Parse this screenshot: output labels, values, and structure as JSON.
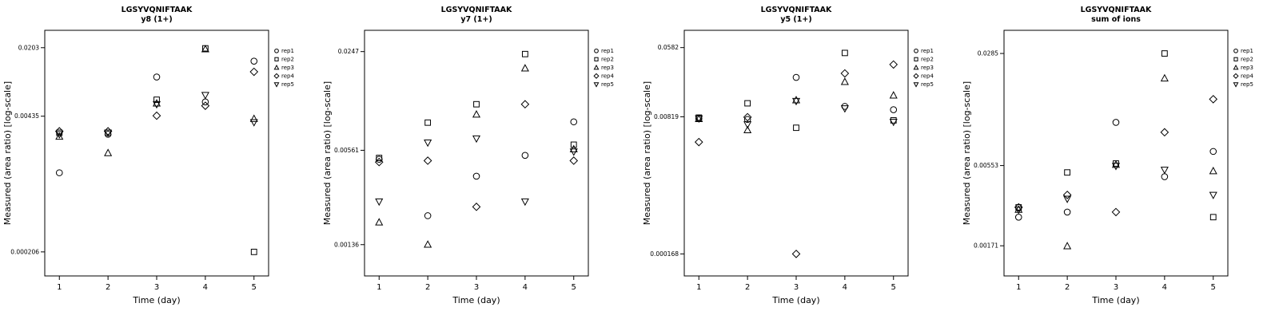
{
  "page": {
    "background": "#ffffff",
    "foreground": "#000000"
  },
  "legend": {
    "position": "right",
    "items": [
      {
        "label": "rep1",
        "marker": "circle"
      },
      {
        "label": "rep2",
        "marker": "square"
      },
      {
        "label": "rep3",
        "marker": "triangle-up"
      },
      {
        "label": "rep4",
        "marker": "diamond"
      },
      {
        "label": "rep5",
        "marker": "triangle-down"
      }
    ]
  },
  "chart_data": [
    {
      "type": "scatter",
      "title": "LGSYVQNIFTAAK",
      "subtitle": "y8 (1+)",
      "xlabel": "Time (day)",
      "ylabel": "Measured (area ratio) [log-scale]",
      "yscale": "log",
      "grid": false,
      "x": [
        1,
        2,
        3,
        4,
        5
      ],
      "xlim": [
        0.7,
        5.3
      ],
      "xticks": [
        1,
        2,
        3,
        4,
        5
      ],
      "ylim": [
        0.00012,
        0.03
      ],
      "yticks": [
        0.000206,
        0.00435,
        0.0203
      ],
      "ytick_labels": [
        "0.000206",
        "0.00435",
        "0.0203"
      ],
      "series": [
        {
          "name": "rep1",
          "marker": "circle",
          "values": [
            0.00122,
            0.0029,
            0.0105,
            0.006,
            0.015
          ]
        },
        {
          "name": "rep2",
          "marker": "square",
          "values": [
            0.003,
            0.003,
            0.0063,
            0.02,
            0.000206
          ]
        },
        {
          "name": "rep3",
          "marker": "triangle-up",
          "values": [
            0.00275,
            0.0019,
            0.0058,
            0.0196,
            0.0041
          ]
        },
        {
          "name": "rep4",
          "marker": "diamond",
          "values": [
            0.0031,
            0.0031,
            0.0044,
            0.0055,
            0.0118
          ]
        },
        {
          "name": "rep5",
          "marker": "triangle-down",
          "values": [
            0.0029,
            0.003,
            0.0057,
            0.007,
            0.0038
          ]
        }
      ]
    },
    {
      "type": "scatter",
      "title": "LGSYVQNIFTAAK",
      "subtitle": "y7 (1+)",
      "xlabel": "Time (day)",
      "ylabel": "Measured (area ratio) [log-scale]",
      "yscale": "log",
      "grid": false,
      "x": [
        1,
        2,
        3,
        4,
        5
      ],
      "xlim": [
        0.7,
        5.3
      ],
      "xticks": [
        1,
        2,
        3,
        4,
        5
      ],
      "ylim": [
        0.00085,
        0.034
      ],
      "yticks": [
        0.00136,
        0.00561,
        0.0247
      ],
      "ytick_labels": [
        "0.00136",
        "0.00561",
        "0.0247"
      ],
      "series": [
        {
          "name": "rep1",
          "marker": "circle",
          "values": [
            0.0049,
            0.0021,
            0.0038,
            0.0052,
            0.0086
          ]
        },
        {
          "name": "rep2",
          "marker": "square",
          "values": [
            0.005,
            0.0085,
            0.0112,
            0.0238,
            0.0061
          ]
        },
        {
          "name": "rep3",
          "marker": "triangle-up",
          "values": [
            0.0019,
            0.00136,
            0.0096,
            0.0192,
            0.0057
          ]
        },
        {
          "name": "rep4",
          "marker": "diamond",
          "values": [
            0.0047,
            0.0048,
            0.0024,
            0.0112,
            0.0048
          ]
        },
        {
          "name": "rep5",
          "marker": "triangle-down",
          "values": [
            0.0026,
            0.0063,
            0.0067,
            0.0026,
            0.0055
          ]
        }
      ]
    },
    {
      "type": "scatter",
      "title": "LGSYVQNIFTAAK",
      "subtitle": "y5 (1+)",
      "xlabel": "Time (day)",
      "ylabel": "Measured (area ratio) [log-scale]",
      "yscale": "log",
      "grid": false,
      "x": [
        1,
        2,
        3,
        4,
        5
      ],
      "xlim": [
        0.7,
        5.3
      ],
      "xticks": [
        1,
        2,
        3,
        4,
        5
      ],
      "ylim": [
        9e-05,
        0.095
      ],
      "yticks": [
        0.000168,
        0.00819,
        0.0582
      ],
      "ytick_labels": [
        "0.000168",
        "0.00819",
        "0.0582"
      ],
      "series": [
        {
          "name": "rep1",
          "marker": "circle",
          "values": [
            0.0078,
            0.0076,
            0.025,
            0.011,
            0.01
          ]
        },
        {
          "name": "rep2",
          "marker": "square",
          "values": [
            0.008,
            0.012,
            0.006,
            0.05,
            0.0074
          ]
        },
        {
          "name": "rep3",
          "marker": "triangle-up",
          "values": [
            0.0077,
            0.0056,
            0.0131,
            0.022,
            0.015
          ]
        },
        {
          "name": "rep4",
          "marker": "diamond",
          "values": [
            0.004,
            0.0081,
            0.000168,
            0.028,
            0.036
          ]
        },
        {
          "name": "rep5",
          "marker": "triangle-down",
          "values": [
            0.0078,
            0.0066,
            0.0128,
            0.0104,
            0.0071
          ]
        }
      ]
    },
    {
      "type": "scatter",
      "title": "LGSYVQNIFTAAK",
      "subtitle": "sum of ions",
      "xlabel": "Time (day)",
      "ylabel": "Measured (area ratio) [log-scale]",
      "yscale": "log",
      "grid": false,
      "x": [
        1,
        2,
        3,
        4,
        5
      ],
      "xlim": [
        0.7,
        5.3
      ],
      "xticks": [
        1,
        2,
        3,
        4,
        5
      ],
      "ylim": [
        0.0011,
        0.04
      ],
      "yticks": [
        0.00171,
        0.00553,
        0.0285
      ],
      "ytick_labels": [
        "0.00171",
        "0.00553",
        "0.0285"
      ],
      "series": [
        {
          "name": "rep1",
          "marker": "circle",
          "values": [
            0.0026,
            0.0028,
            0.0104,
            0.0047,
            0.0068
          ]
        },
        {
          "name": "rep2",
          "marker": "square",
          "values": [
            0.003,
            0.005,
            0.0057,
            0.0285,
            0.0026
          ]
        },
        {
          "name": "rep3",
          "marker": "triangle-up",
          "values": [
            0.0029,
            0.0017,
            0.0056,
            0.0198,
            0.0051
          ]
        },
        {
          "name": "rep4",
          "marker": "diamond",
          "values": [
            0.003,
            0.0036,
            0.0028,
            0.009,
            0.0146
          ]
        },
        {
          "name": "rep5",
          "marker": "triangle-down",
          "values": [
            0.0029,
            0.0034,
            0.0055,
            0.0052,
            0.0036
          ]
        }
      ]
    }
  ]
}
